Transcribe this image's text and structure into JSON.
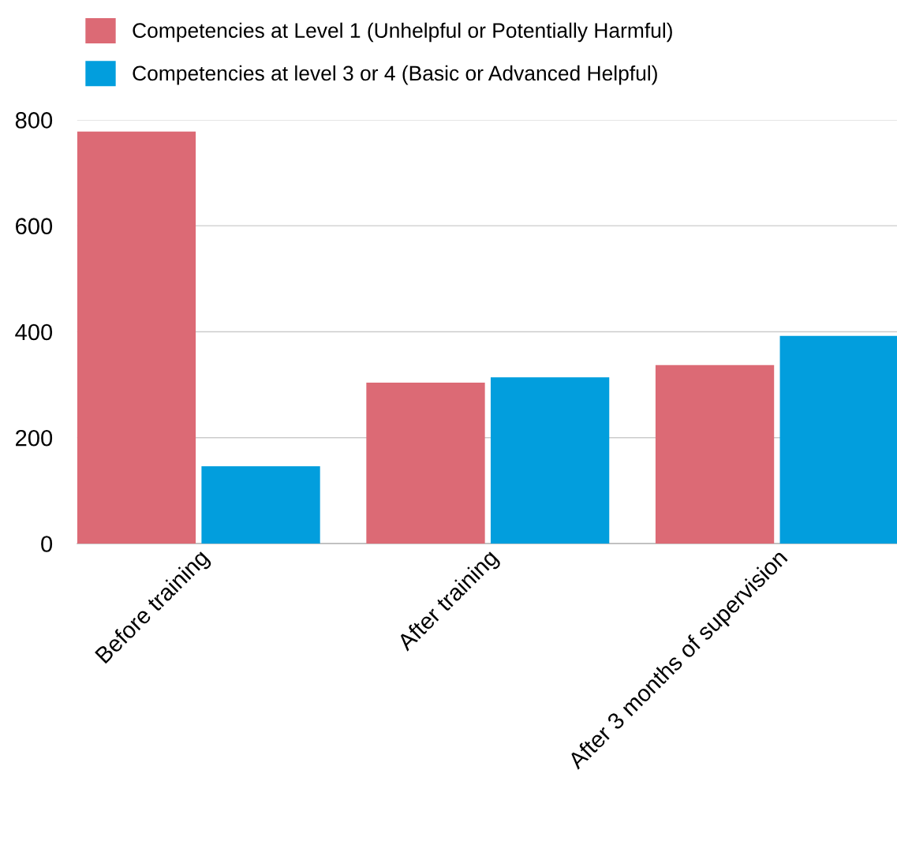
{
  "chart_data": {
    "type": "bar",
    "categories": [
      "Before training",
      "After training",
      "After 3 months of supervision"
    ],
    "series": [
      {
        "name": "Competencies at Level 1 (Unhelpful or Potentially Harmful)",
        "color": "#dc6a75",
        "values": [
          778,
          304,
          337
        ]
      },
      {
        "name": "Competencies at level 3 or 4 (Basic or Advanced Helpful)",
        "color": "#029edd",
        "values": [
          146,
          314,
          392
        ]
      }
    ],
    "ylim": [
      0,
      800
    ],
    "yticks": [
      0,
      200,
      400,
      600,
      800
    ],
    "grid": "y",
    "legend": "top left"
  }
}
